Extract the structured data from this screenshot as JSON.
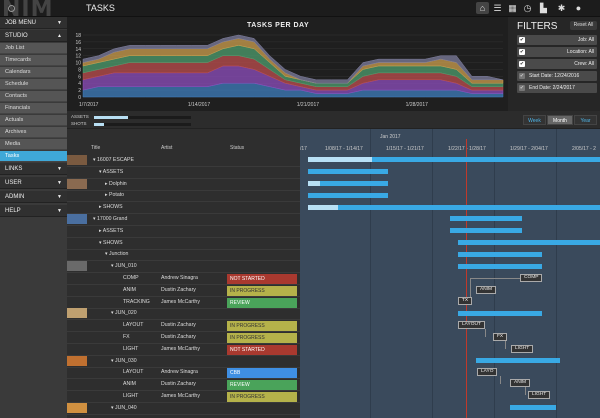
{
  "app": {
    "logo": "NIM",
    "page_title": "TASKS"
  },
  "topbar": {
    "icons": [
      "home-icon",
      "list-icon",
      "calendar-icon",
      "clock-icon",
      "bookmark-icon",
      "gear-icon",
      "user-icon"
    ]
  },
  "sidebar": {
    "job_menu": "JOB MENU",
    "studio": "STUDIO",
    "studio_items": [
      "Job List",
      "Timecards",
      "Calendars",
      "Schedule",
      "Contacts",
      "Financials",
      "Actuals",
      "Archives",
      "Media",
      "Tasks"
    ],
    "active": "Tasks",
    "sections": [
      "LINKS",
      "USER",
      "ADMIN",
      "HELP"
    ]
  },
  "chart_data": {
    "type": "area",
    "title": "TASKS PER DAY",
    "ylim": [
      0,
      18
    ],
    "yticks": [
      0,
      2,
      4,
      6,
      8,
      10,
      12,
      14,
      16,
      18
    ],
    "xticks": [
      "1/7/2017",
      "1/14/2017",
      "1/21/2017",
      "1/28/2017"
    ],
    "x": [
      "1/7",
      "1/8",
      "1/9",
      "1/10",
      "1/11",
      "1/12",
      "1/13",
      "1/14",
      "1/15",
      "1/16",
      "1/17",
      "1/18",
      "1/19",
      "1/20",
      "1/21",
      "1/22",
      "1/23",
      "1/24",
      "1/25",
      "1/26",
      "1/27",
      "1/28",
      "1/29",
      "1/30",
      "1/31",
      "2/1",
      "2/2",
      "2/3"
    ],
    "series": [
      {
        "color": "#3f7fbf",
        "values": [
          2,
          3,
          3,
          3,
          3,
          3,
          3,
          3,
          3,
          4,
          4,
          4,
          3,
          2,
          2,
          1,
          1,
          1,
          2,
          2,
          2,
          2,
          2,
          2,
          2,
          1,
          1,
          1
        ]
      },
      {
        "color": "#8f4fbf",
        "values": [
          3,
          3,
          4,
          4,
          4,
          4,
          4,
          4,
          4,
          5,
          5,
          4,
          3,
          2,
          1,
          1,
          1,
          1,
          2,
          3,
          3,
          3,
          3,
          3,
          2,
          1,
          1,
          1
        ]
      },
      {
        "color": "#bf4f4f",
        "values": [
          2,
          2,
          2,
          3,
          3,
          3,
          3,
          3,
          3,
          3,
          3,
          3,
          2,
          1,
          1,
          1,
          1,
          1,
          2,
          2,
          2,
          2,
          2,
          2,
          2,
          1,
          1,
          1
        ]
      },
      {
        "color": "#4f9f6f",
        "values": [
          2,
          2,
          2,
          2,
          2,
          2,
          2,
          2,
          2,
          2,
          3,
          3,
          2,
          1,
          1,
          1,
          1,
          1,
          2,
          2,
          2,
          2,
          2,
          2,
          2,
          1,
          1,
          1
        ]
      },
      {
        "color": "#cfa04f",
        "values": [
          1,
          1,
          2,
          2,
          2,
          2,
          2,
          2,
          2,
          2,
          2,
          2,
          1,
          1,
          0,
          0,
          0,
          0,
          1,
          1,
          1,
          1,
          1,
          2,
          2,
          1,
          1,
          1
        ]
      },
      {
        "color": "#7f7f9f",
        "values": [
          1,
          1,
          1,
          1,
          1,
          1,
          1,
          1,
          1,
          1,
          1,
          1,
          1,
          1,
          1,
          1,
          1,
          1,
          1,
          1,
          1,
          1,
          1,
          1,
          2,
          1,
          1,
          0
        ]
      }
    ]
  },
  "filters": {
    "title": "FILTERS",
    "reset": "Reset All",
    "rows": [
      {
        "label": "Job: All",
        "checked": true
      },
      {
        "label": "Location: All",
        "checked": true
      },
      {
        "label": "Crew: All",
        "checked": true
      },
      {
        "label": "Start Date: 12/24/2016",
        "checked": false
      },
      {
        "label": "End Date: 2/24/2017",
        "checked": false
      }
    ]
  },
  "progress": {
    "assets_label": "ASSETS",
    "shots_label": "SHOTS",
    "assets": 0.35,
    "shots": 0.1
  },
  "view_buttons": {
    "week": "Week",
    "month": "Month",
    "year": "Year",
    "active": "Month"
  },
  "table": {
    "headers": {
      "title": "Title",
      "artist": "Artist",
      "status": "Status"
    },
    "gantt_month": "Jan 2017",
    "gantt_weeks": [
      "/17",
      "1/08/17 - 1/14/17",
      "1/15/17 - 1/21/17",
      "1/22/17 - 1/28/17",
      "1/29/17 - 2/04/17",
      "2/05/17 - 2"
    ],
    "rows": [
      {
        "title": "16007 ESCAPE",
        "artist": "",
        "status": ""
      },
      {
        "title": "ASSETS",
        "artist": "",
        "status": ""
      },
      {
        "title": "Dolphin",
        "artist": "",
        "status": ""
      },
      {
        "title": "Potato",
        "artist": "",
        "status": ""
      },
      {
        "title": "SHOWS",
        "artist": "",
        "status": ""
      },
      {
        "title": "17000 Grand",
        "artist": "",
        "status": ""
      },
      {
        "title": "ASSETS",
        "artist": "",
        "status": ""
      },
      {
        "title": "SHOWS",
        "artist": "",
        "status": ""
      },
      {
        "title": "Junction",
        "artist": "",
        "status": ""
      },
      {
        "title": "JUN_010",
        "artist": "",
        "status": ""
      },
      {
        "title": "COMP",
        "artist": "Andrew Sinagra",
        "status": "NOT STARTED"
      },
      {
        "title": "ANIM",
        "artist": "Dustin Zachary",
        "status": "IN PROGRESS"
      },
      {
        "title": "TRACKING",
        "artist": "James McCarthy",
        "status": "REVIEW"
      },
      {
        "title": "JUN_020",
        "artist": "",
        "status": ""
      },
      {
        "title": "LAYOUT",
        "artist": "Dustin Zachary",
        "status": "IN PROGRESS"
      },
      {
        "title": "FX",
        "artist": "Dustin Zachary",
        "status": "IN PROGRESS"
      },
      {
        "title": "LIGHT",
        "artist": "James McCarthy",
        "status": "NOT STARTED"
      },
      {
        "title": "JUN_030",
        "artist": "",
        "status": ""
      },
      {
        "title": "LAYOUT",
        "artist": "Andrew Sinagra",
        "status": "CBB"
      },
      {
        "title": "ANIM",
        "artist": "Dustin Zachary",
        "status": "REVIEW"
      },
      {
        "title": "LIGHT",
        "artist": "James McCarthy",
        "status": "IN PROGRESS"
      },
      {
        "title": "JUN_040",
        "artist": "",
        "status": ""
      }
    ],
    "status_colors": {
      "NOT STARTED": "#a9392f",
      "IN PROGRESS": "#b5b24a",
      "REVIEW": "#4aa35a",
      "CBB": "#3f8fe3"
    },
    "gantt_tags": [
      "COMP",
      "ANIM",
      "TX",
      "LAYOUT",
      "FX",
      "LIGHT",
      "LAYO",
      "ANIM",
      "LIGHT"
    ]
  }
}
